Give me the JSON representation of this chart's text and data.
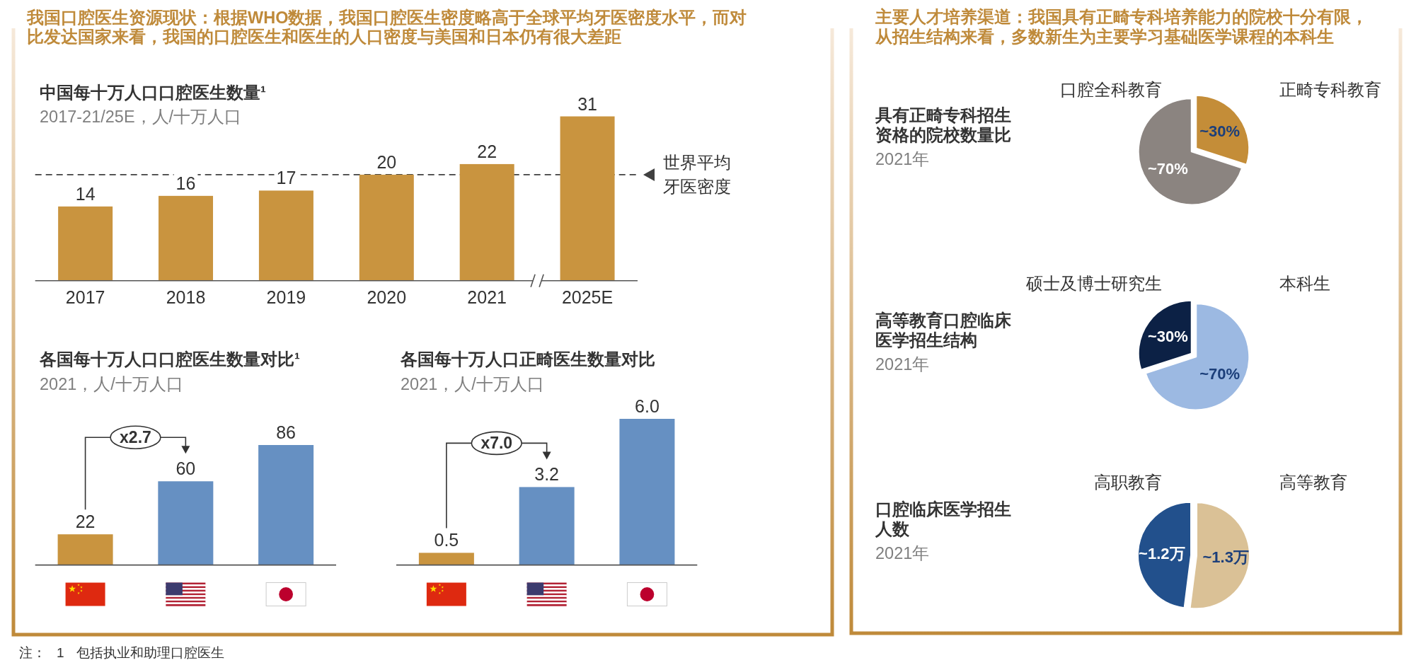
{
  "chart_data": [
    {
      "type": "other",
      "title": "我国口腔医生资源现状：根据WHO数据，我国口腔医生密度略高于全球平均牙医密度水平，而对比发达国家来看，我国的口腔医生和医生的人口密度与美国和日本仍有很大差距"
    },
    {
      "type": "bar",
      "title": "中国每十万人口口腔医生数量¹",
      "subtitle": "2017-21/25E，人/十万人口",
      "categories": [
        "2017",
        "2018",
        "2019",
        "2020",
        "2021",
        "2025E"
      ],
      "values": [
        14,
        16,
        17,
        20,
        22,
        31
      ],
      "color": "#c9943f",
      "data_labels": true,
      "ref_lines": [
        {
          "axis": "y",
          "value": 20,
          "label": "世界平均牙医密度",
          "line_style": "dashed",
          "color": "#404040"
        }
      ]
    },
    {
      "type": "bar",
      "title": "各国每十万人口口腔医生数量对比¹",
      "subtitle": "2021，人/十万人口",
      "categories": [
        null,
        null,
        null
      ],
      "values": [
        22,
        60,
        86
      ],
      "colors": [
        "#c9943f",
        "#6690c2",
        "#6690c2"
      ],
      "data_labels": true,
      "annotations": [
        "x2.7"
      ]
    },
    {
      "type": "bar",
      "title": "各国每十万人口正畸医生数量对比",
      "subtitle": "2021，人/十万人口",
      "categories": [
        null,
        null,
        null
      ],
      "values": [
        0.5,
        3.2,
        6.0
      ],
      "value_labels": [
        "0.5",
        "3.2",
        "6.0"
      ],
      "colors": [
        "#c9943f",
        "#6690c2",
        "#6690c2"
      ],
      "annotations": [
        "x7.0"
      ]
    },
    {
      "type": "other",
      "title": "主要人才培养渠道：我国具有正畸专科培养能力的院校十分有限，从招生结构来看，多数新生为主要学习基础医学课程的本科生"
    },
    {
      "type": "pie",
      "title": "具有正畸专科招生资格的院校数量比",
      "subtitle": "2021年",
      "categories": [
        "口腔全科教育",
        "正畸专科教育"
      ],
      "values": [
        70,
        30
      ],
      "value_labels": [
        "~70%",
        "~30%"
      ],
      "colors": [
        "#8b8480",
        "#c48d38"
      ]
    },
    {
      "type": "pie",
      "title": "高等教育口腔临床医学招生结构",
      "subtitle": "2021年",
      "categories": [
        "硕士及博士研究生",
        "本科生"
      ],
      "values": [
        30,
        70
      ],
      "value_labels": [
        "~30%",
        "~70%"
      ],
      "colors": [
        "#0c2145",
        "#9cb9e2"
      ]
    },
    {
      "type": "pie",
      "title": "口腔临床医学招生人数",
      "subtitle": "2021年",
      "categories": [
        "高职教育",
        "高等教育"
      ],
      "values": [
        1.2,
        1.3
      ],
      "value_labels": [
        "~1.2万",
        "~1.3万"
      ],
      "colors": [
        "#22508c",
        "#dac196"
      ]
    },
    {
      "type": "other",
      "annotations": [
        "注：",
        "1",
        "包括执业和助理口腔医生"
      ]
    }
  ]
}
